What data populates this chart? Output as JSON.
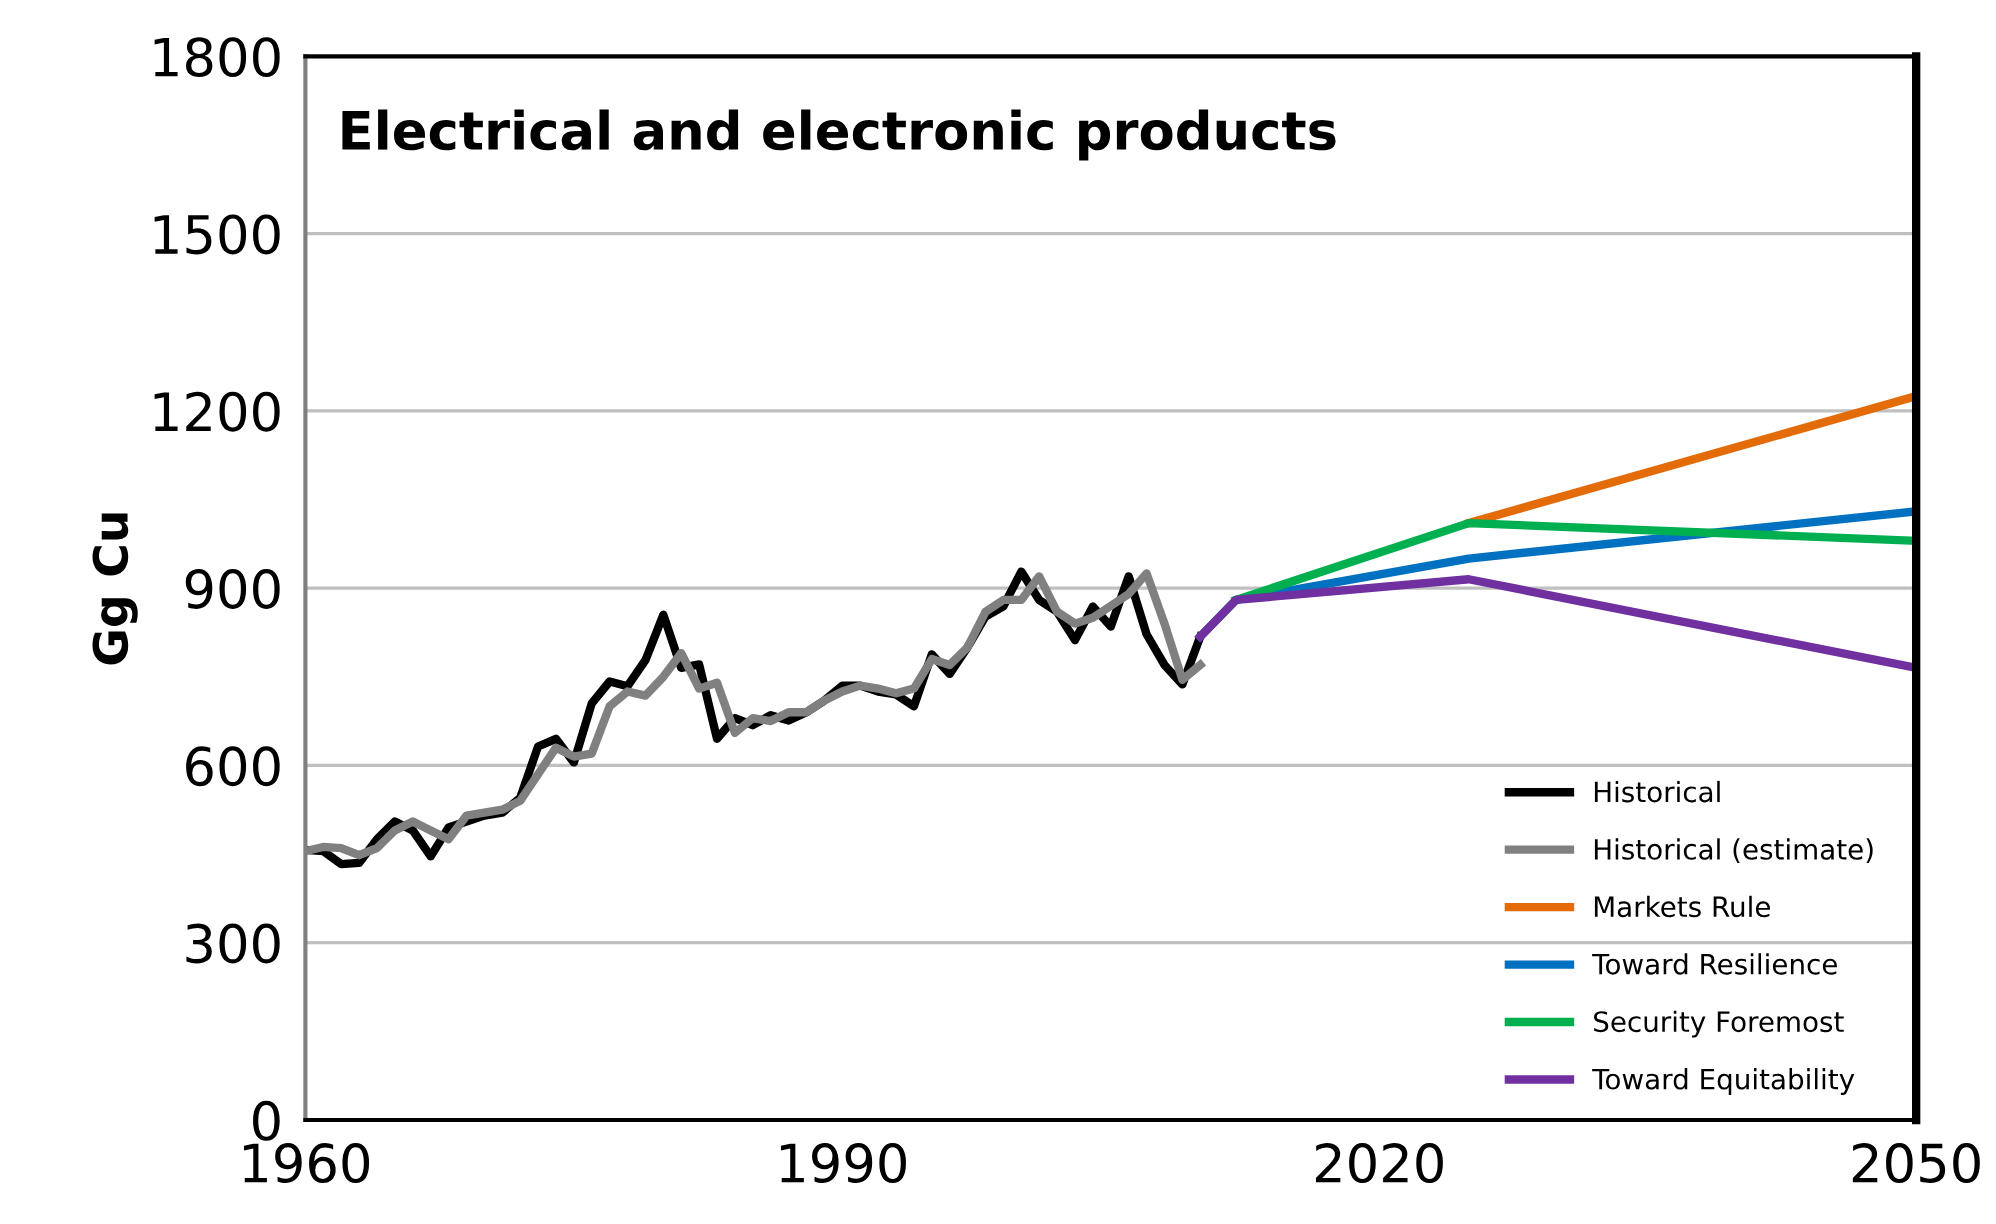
{
  "chart_data": {
    "type": "line",
    "title": "Electrical and electronic products",
    "ylabel": "Gg Cu",
    "xlim": [
      1960,
      2050
    ],
    "xticks": [
      1960,
      1990,
      2020,
      2050
    ],
    "ylim": [
      0,
      1800
    ],
    "yticks": [
      0,
      300,
      600,
      900,
      1200,
      1500,
      1800
    ],
    "grid": "y",
    "legend": "bottom right",
    "marker": "none",
    "line_style": "solid",
    "series": [
      {
        "name": "Historical",
        "color": "#000000",
        "x": [
          1960,
          1961,
          1962,
          1963,
          1964,
          1965,
          1966,
          1967,
          1968,
          1969,
          1970,
          1971,
          1972,
          1973,
          1974,
          1975,
          1976,
          1977,
          1978,
          1979,
          1980,
          1981,
          1982,
          1983,
          1984,
          1985,
          1986,
          1987,
          1988,
          1989,
          1990,
          1991,
          1992,
          1993,
          1994,
          1995,
          1996,
          1997,
          1998,
          1999,
          2000,
          2001,
          2002,
          2003,
          2004,
          2005,
          2006,
          2007,
          2008,
          2009,
          2010
        ],
        "values": [
          457,
          455,
          433,
          435,
          475,
          505,
          490,
          446,
          495,
          505,
          515,
          520,
          545,
          632,
          645,
          605,
          705,
          742,
          734,
          778,
          855,
          765,
          771,
          645,
          680,
          668,
          685,
          676,
          690,
          710,
          735,
          735,
          725,
          720,
          700,
          788,
          755,
          800,
          852,
          869,
          928,
          880,
          860,
          812,
          869,
          835,
          920,
          822,
          770,
          737,
          818
        ]
      },
      {
        "name": "Historical (estimate)",
        "color": "#808080",
        "x": [
          1960,
          1961,
          1962,
          1963,
          1964,
          1965,
          1966,
          1967,
          1968,
          1969,
          1970,
          1971,
          1972,
          1973,
          1974,
          1975,
          1976,
          1977,
          1978,
          1979,
          1980,
          1981,
          1982,
          1983,
          1984,
          1985,
          1986,
          1987,
          1988,
          1989,
          1990,
          1991,
          1992,
          1993,
          1994,
          1995,
          1996,
          1997,
          1998,
          1999,
          2000,
          2001,
          2002,
          2003,
          2004,
          2005,
          2006,
          2007,
          2008,
          2009,
          2010
        ],
        "values": [
          455,
          462,
          460,
          448,
          460,
          490,
          505,
          490,
          475,
          515,
          520,
          525,
          540,
          585,
          630,
          615,
          620,
          700,
          725,
          718,
          750,
          790,
          730,
          740,
          655,
          680,
          675,
          690,
          690,
          710,
          725,
          735,
          730,
          722,
          730,
          780,
          770,
          800,
          860,
          880,
          880,
          920,
          860,
          840,
          850,
          870,
          890,
          925,
          840,
          745,
          770
        ]
      },
      {
        "name": "Markets Rule",
        "color": "#e36c09",
        "x": [
          2025,
          2050
        ],
        "values": [
          1010,
          1225
        ]
      },
      {
        "name": "Toward Resilience",
        "color": "#0070c0",
        "x": [
          2010,
          2012,
          2025,
          2050
        ],
        "values": [
          818,
          880,
          950,
          1030
        ]
      },
      {
        "name": "Security Foremost",
        "color": "#00b050",
        "x": [
          2012,
          2025,
          2050
        ],
        "values": [
          880,
          1010,
          980
        ]
      },
      {
        "name": "Toward Equitability",
        "color": "#7030a0",
        "x": [
          2010,
          2012,
          2025,
          2050
        ],
        "values": [
          818,
          880,
          915,
          765
        ]
      }
    ]
  }
}
